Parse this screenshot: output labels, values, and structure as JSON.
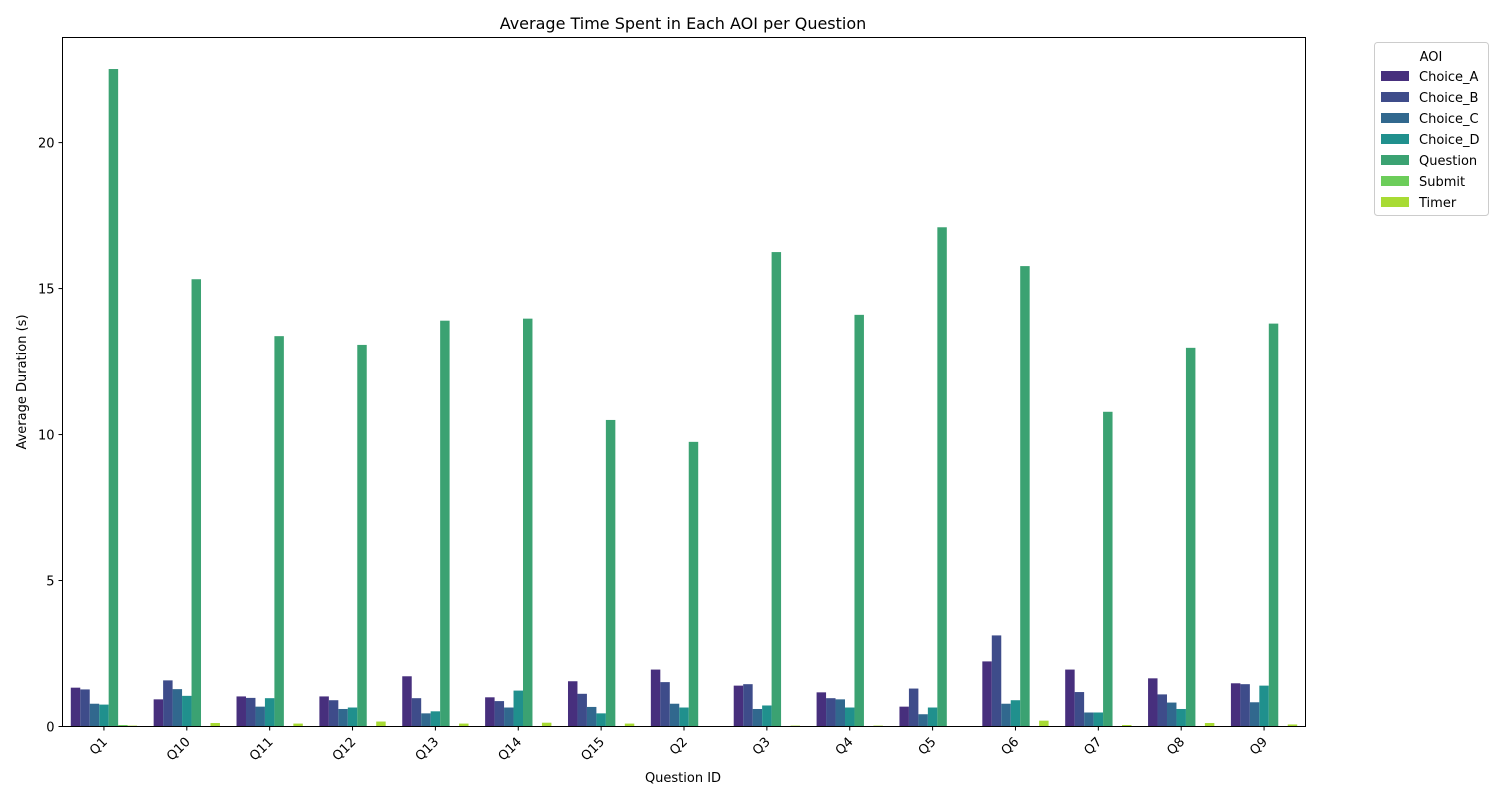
{
  "chart_data": {
    "type": "bar",
    "title": "Average Time Spent in Each AOI per Question",
    "xlabel": "Question ID",
    "ylabel": "Average Duration (s)",
    "ylim": [
      0,
      23.6
    ],
    "yticks": [
      0,
      5,
      10,
      15,
      20
    ],
    "grid": false,
    "legend": {
      "title": "AOI",
      "placement": "outside-top-right"
    },
    "categories": [
      "Q1",
      "Q10",
      "Q11",
      "Q12",
      "Q13",
      "Q14",
      "Q15",
      "Q2",
      "Q3",
      "Q4",
      "Q5",
      "Q6",
      "Q7",
      "Q8",
      "Q9"
    ],
    "series": [
      {
        "name": "Choice_A",
        "color": "#472f7d",
        "values": [
          1.33,
          0.93,
          1.03,
          1.03,
          1.72,
          1.0,
          1.55,
          1.95,
          1.4,
          1.17,
          0.68,
          2.23,
          1.95,
          1.65,
          1.48
        ]
      },
      {
        "name": "Choice_B",
        "color": "#3e4c8a",
        "values": [
          1.27,
          1.58,
          0.98,
          0.9,
          0.97,
          0.87,
          1.12,
          1.52,
          1.45,
          0.97,
          1.3,
          3.12,
          1.18,
          1.1,
          1.45
        ]
      },
      {
        "name": "Choice_C",
        "color": "#31688e",
        "values": [
          0.78,
          1.28,
          0.68,
          0.6,
          0.45,
          0.65,
          0.67,
          0.78,
          0.6,
          0.93,
          0.42,
          0.78,
          0.48,
          0.82,
          0.83
        ]
      },
      {
        "name": "Choice_D",
        "color": "#20908d",
        "values": [
          0.75,
          1.05,
          0.97,
          0.65,
          0.52,
          1.23,
          0.45,
          0.65,
          0.72,
          0.65,
          0.65,
          0.9,
          0.48,
          0.6,
          1.4
        ]
      },
      {
        "name": "Question",
        "color": "#3ba272",
        "values": [
          22.52,
          15.32,
          13.37,
          13.07,
          13.9,
          13.97,
          10.5,
          9.75,
          16.25,
          14.1,
          17.1,
          15.77,
          10.78,
          12.97,
          13.8
        ]
      },
      {
        "name": "Submit",
        "color": "#6ccd5a",
        "values": [
          0.05,
          0,
          0,
          0,
          0,
          0,
          0,
          0,
          0,
          0,
          0,
          0,
          0,
          0,
          0
        ]
      },
      {
        "name": "Timer",
        "color": "#a8db34",
        "values": [
          0.03,
          0.12,
          0.1,
          0.17,
          0.1,
          0.13,
          0.1,
          0,
          0.03,
          0.03,
          0,
          0.2,
          0.05,
          0.12,
          0.07
        ]
      }
    ]
  }
}
